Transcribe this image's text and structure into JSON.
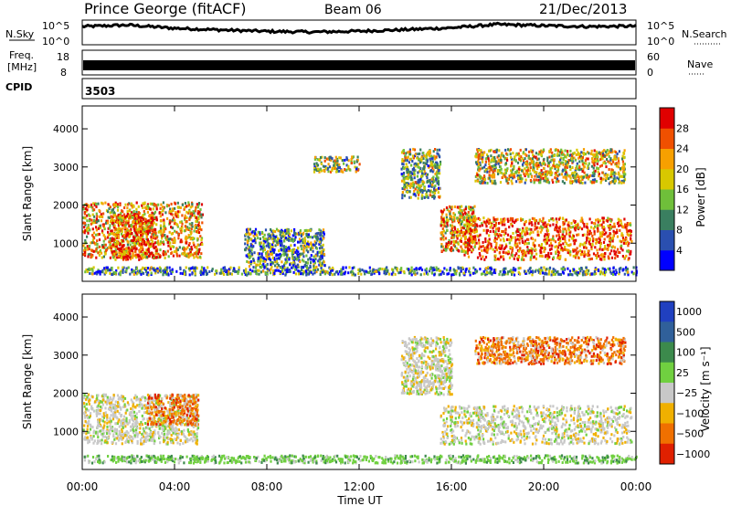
{
  "header": {
    "title": "Prince George (fitACF)",
    "beam": "Beam 06",
    "date": "21/Dec/2013",
    "cpid_label": "CPID",
    "cpid_value": "3503"
  },
  "chart_data": [
    {
      "type": "line",
      "name": "noise-panel",
      "left_label": "N.Sky",
      "right_label": "N.Search",
      "yticks_left": [
        "10^5",
        "10^0"
      ],
      "yticks_right": [
        "10^5",
        "10^0"
      ],
      "x": [
        "00:00",
        "02:00",
        "04:00",
        "06:00",
        "08:00",
        "10:00",
        "12:00",
        "14:00",
        "16:00",
        "18:00",
        "20:00",
        "22:00",
        "24:00"
      ],
      "y": [
        0.78,
        0.85,
        0.7,
        0.62,
        0.55,
        0.52,
        0.56,
        0.63,
        0.72,
        0.88,
        0.82,
        0.78,
        0.8
      ]
    },
    {
      "type": "line",
      "name": "freq-nave-panel",
      "left_label_lines": [
        "Freq.",
        "[MHz]"
      ],
      "right_label": "Nave",
      "yticks_left": [
        "18",
        "8"
      ],
      "yticks_right": [
        "60",
        "0"
      ],
      "note_freq_mhz": 11
    },
    {
      "type": "heatmap",
      "name": "power-panel",
      "ylabel": "Slant Range [km]",
      "yticks": [
        1000,
        2000,
        3000,
        4000
      ],
      "ylim": [
        200,
        4500
      ],
      "xlim_hours": [
        0,
        24
      ],
      "colorbar": {
        "label": "Power [dB]",
        "ticks": [
          4,
          8,
          12,
          16,
          20,
          24,
          28
        ],
        "range": [
          0,
          32
        ],
        "colors": [
          "#0000ff",
          "#2a4fb0",
          "#3a7f60",
          "#6fbf3a",
          "#d8c800",
          "#f7a000",
          "#f05000",
          "#e00000"
        ]
      },
      "regions": [
        {
          "t0": 0.0,
          "t1": 5.2,
          "r0": 650,
          "r1": 2100,
          "level": 0.65
        },
        {
          "t0": 1.2,
          "t1": 3.2,
          "r0": 600,
          "r1": 1800,
          "level": 0.8
        },
        {
          "t0": 7.0,
          "t1": 10.5,
          "r0": 400,
          "r1": 1400,
          "level": 0.35
        },
        {
          "t0": 10.0,
          "t1": 12.0,
          "r0": 2900,
          "r1": 3300,
          "level": 0.45
        },
        {
          "t0": 13.8,
          "t1": 15.5,
          "r0": 2200,
          "r1": 3500,
          "level": 0.45
        },
        {
          "t0": 15.5,
          "t1": 17.0,
          "r0": 800,
          "r1": 2000,
          "level": 0.65
        },
        {
          "t0": 16.5,
          "t1": 23.8,
          "r0": 600,
          "r1": 1700,
          "level": 0.82
        },
        {
          "t0": 17.0,
          "t1": 23.5,
          "r0": 2600,
          "r1": 3500,
          "level": 0.55
        },
        {
          "t0": 0.0,
          "t1": 24.0,
          "r0": 200,
          "r1": 400,
          "level": 0.3
        }
      ]
    },
    {
      "type": "heatmap",
      "name": "velocity-panel",
      "ylabel": "Slant Range [km]",
      "yticks": [
        1000,
        2000,
        3000,
        4000
      ],
      "ylim": [
        200,
        4500
      ],
      "xlim_hours": [
        0,
        24
      ],
      "xticks": [
        "00:00",
        "04:00",
        "08:00",
        "12:00",
        "16:00",
        "20:00",
        "00:00"
      ],
      "xlabel": "Time UT",
      "colorbar": {
        "label": "Velocity [m s⁻¹]",
        "ticks": [
          "1000",
          "500",
          "100",
          "25",
          "−25",
          "−100",
          "−500",
          "−1000"
        ],
        "colors": [
          "#2040c0",
          "#30609a",
          "#3c8a4c",
          "#70d040",
          "#c8c8c8",
          "#f0b000",
          "#f07000",
          "#e02000"
        ]
      },
      "regions": [
        {
          "t0": 0.0,
          "t1": 5.0,
          "r0": 700,
          "r1": 2000,
          "vel": "gray"
        },
        {
          "t0": 2.8,
          "t1": 5.0,
          "r0": 1200,
          "r1": 2000,
          "vel": "orange"
        },
        {
          "t0": 13.8,
          "t1": 16.0,
          "r0": 2000,
          "r1": 3500,
          "vel": "gray"
        },
        {
          "t0": 15.5,
          "t1": 23.8,
          "r0": 700,
          "r1": 1700,
          "vel": "gray"
        },
        {
          "t0": 17.0,
          "t1": 23.5,
          "r0": 2800,
          "r1": 3500,
          "vel": "orange"
        },
        {
          "t0": 0.0,
          "t1": 24.0,
          "r0": 200,
          "r1": 400,
          "vel": "green"
        }
      ]
    }
  ]
}
